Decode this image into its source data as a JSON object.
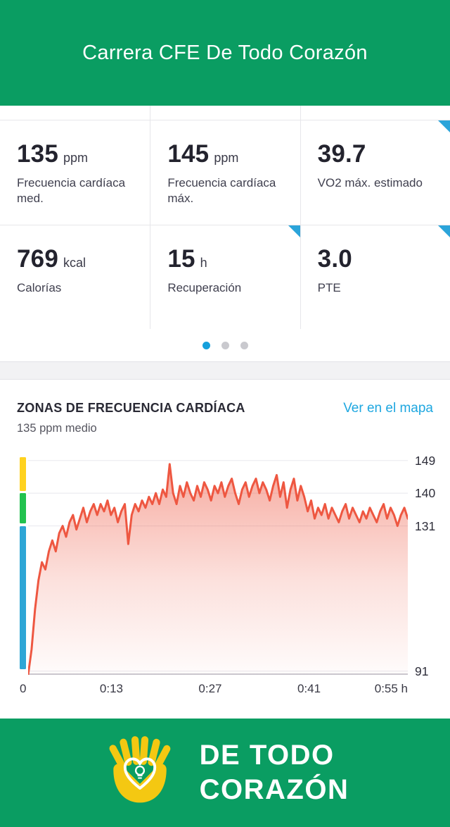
{
  "header": {
    "title": "Carrera CFE De Todo Corazón",
    "bg_color": "#0a9d62"
  },
  "stats": {
    "cells": [
      {
        "value": "135",
        "unit": "ppm",
        "label": "Frecuencia cardíaca med.",
        "corner": false
      },
      {
        "value": "145",
        "unit": "ppm",
        "label": "Frecuencia cardíaca máx.",
        "corner": false
      },
      {
        "value": "39.7",
        "unit": "",
        "label": "VO2 máx. estimado",
        "corner": true
      },
      {
        "value": "769",
        "unit": "kcal",
        "label": "Calorías",
        "corner": false
      },
      {
        "value": "15",
        "unit": "h",
        "label": "Recuperación",
        "corner": true
      },
      {
        "value": "3.0",
        "unit": "",
        "label": "PTE",
        "corner": true
      }
    ],
    "pagination": {
      "total": 3,
      "active_index": 0,
      "active_color": "#15a0dc",
      "inactive_color": "#c9c9ce"
    }
  },
  "section": {
    "title": "ZONAS DE FRECUENCIA CARDÍACA",
    "link_label": "Ver en el mapa",
    "subtitle": "135 ppm medio"
  },
  "chart_data": {
    "type": "line",
    "title": "ZONAS DE FRECUENCIA CARDÍACA",
    "subtitle": "135 ppm medio",
    "unit": "ppm",
    "x_unit": "min",
    "x_range_min": [
      0,
      55
    ],
    "y_ticks": [
      149,
      140,
      131,
      91
    ],
    "x_ticks": [
      {
        "label": "0",
        "min": 0
      },
      {
        "label": "0:13",
        "min": 13
      },
      {
        "label": "0:27",
        "min": 27
      },
      {
        "label": "0:41",
        "min": 41
      },
      {
        "label": "0:55 h",
        "min": 55
      }
    ],
    "line_color": "#ee5741",
    "grid_color": "#e8e8ed",
    "zones": [
      {
        "name": "yellow",
        "color": "#ffd21f",
        "from": 140,
        "to": 150.5
      },
      {
        "name": "green",
        "color": "#23c24f",
        "from": 131,
        "to": 140
      },
      {
        "name": "blue",
        "color": "#2ea6d6",
        "from": 91,
        "to": 131
      }
    ],
    "sample_step_min": 0.5,
    "values": [
      90,
      97,
      108,
      116,
      121,
      119,
      124,
      127,
      124,
      129,
      131,
      128,
      132,
      134,
      130,
      133,
      136,
      132,
      135,
      137,
      134,
      137,
      135,
      138,
      134,
      136,
      132,
      135,
      137,
      126,
      134,
      137,
      135,
      138,
      136,
      139,
      137,
      140,
      137,
      141,
      139,
      148,
      140,
      137,
      142,
      139,
      143,
      140,
      138,
      142,
      139,
      143,
      141,
      138,
      142,
      140,
      143,
      139,
      142,
      144,
      140,
      137,
      141,
      143,
      139,
      142,
      144,
      140,
      143,
      141,
      138,
      142,
      145,
      139,
      143,
      136,
      141,
      144,
      138,
      142,
      139,
      135,
      138,
      133,
      136,
      134,
      137,
      133,
      136,
      134,
      132,
      135,
      137,
      133,
      136,
      134,
      132,
      135,
      133,
      136,
      134,
      132,
      135,
      137,
      133,
      136,
      134,
      131,
      134,
      136,
      133
    ]
  },
  "footer": {
    "line1": "DE TODO",
    "line2": "CORAZÓN",
    "bg_color": "#0a9d62"
  }
}
